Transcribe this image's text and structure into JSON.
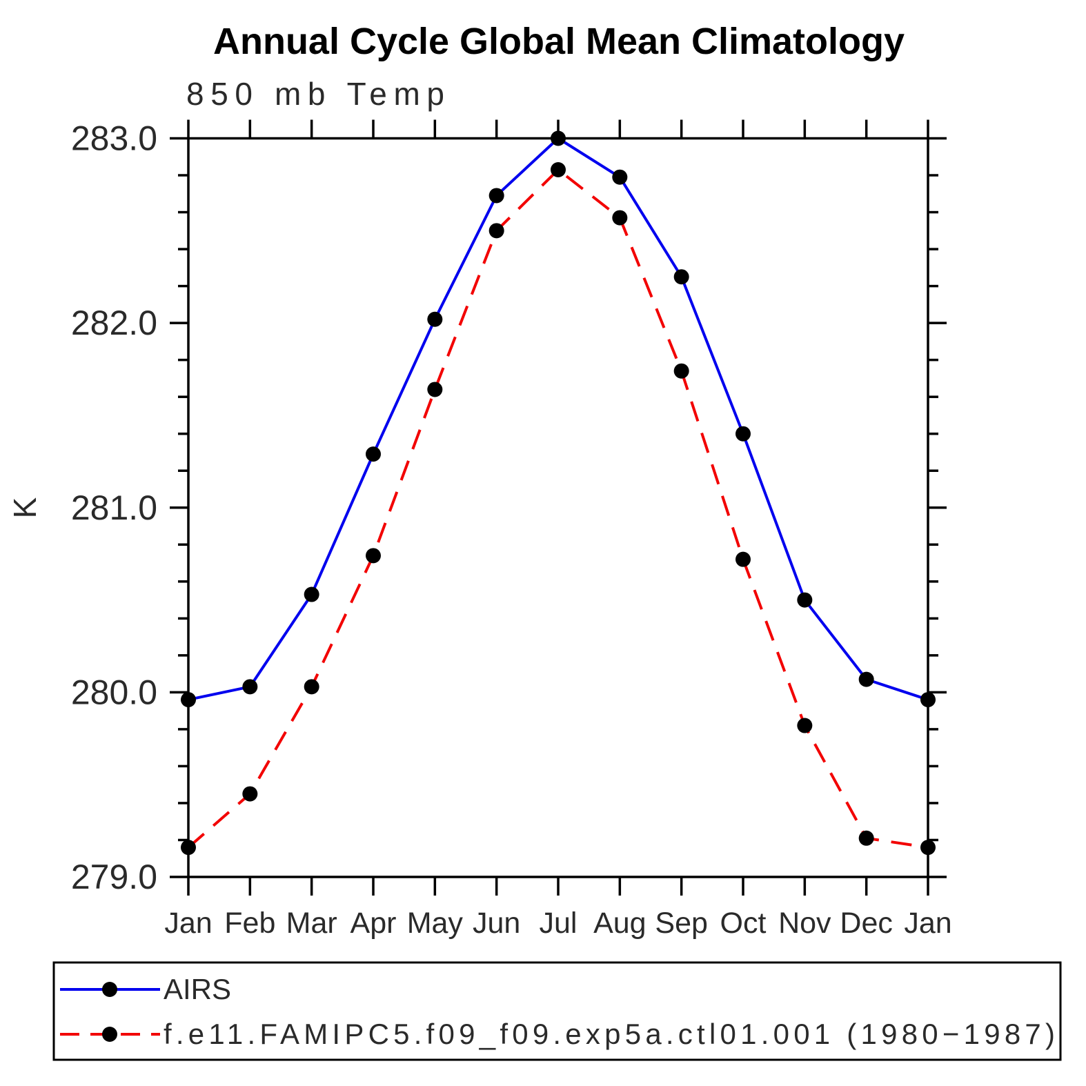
{
  "header": {
    "title": "Annual Cycle Global Mean Climatology",
    "subtitle": "850 mb Temp"
  },
  "colors": {
    "airs_line": "#0000ee",
    "model_line": "#f20000",
    "marker": "#000000",
    "axis": "#000000"
  },
  "legend": {
    "items": [
      {
        "label": "AIRS",
        "style": "solid",
        "color": "#0000ee"
      },
      {
        "label": "f.e11.FAMIPC5.f09_f09.exp5a.ctl01.001 (1980−1987)",
        "style": "dashed",
        "color": "#f20000"
      }
    ]
  },
  "chart_data": {
    "type": "line",
    "title": "Annual Cycle Global Mean Climatology",
    "subtitle": "850 mb Temp",
    "xlabel": "",
    "ylabel": "K",
    "categories": [
      "Jan",
      "Feb",
      "Mar",
      "Apr",
      "May",
      "Jun",
      "Jul",
      "Aug",
      "Sep",
      "Oct",
      "Nov",
      "Dec",
      "Jan"
    ],
    "series": [
      {
        "name": "AIRS",
        "style": "solid",
        "color": "#0000ee",
        "marker": "circle",
        "marker_color": "#000000",
        "values": [
          279.96,
          280.03,
          280.53,
          281.29,
          282.02,
          282.69,
          283.0,
          282.79,
          282.25,
          281.4,
          280.5,
          280.07,
          279.96
        ]
      },
      {
        "name": "f.e11.FAMIPC5.f09_f09.exp5a.ctl01.001 (1980−1987)",
        "style": "dashed",
        "color": "#f20000",
        "marker": "circle",
        "marker_color": "#000000",
        "values": [
          279.16,
          279.45,
          280.03,
          280.74,
          281.64,
          282.5,
          282.83,
          282.57,
          281.74,
          280.72,
          279.82,
          279.21,
          279.16
        ]
      }
    ],
    "ylim": [
      279.0,
      283.0
    ],
    "yticks": [
      279.0,
      280.0,
      281.0,
      282.0,
      283.0
    ],
    "ytick_labels": [
      "279.0",
      "280.0",
      "281.0",
      "282.0",
      "283.0"
    ],
    "y_minor_step": 0.2,
    "grid": false,
    "legend_position": "bottom"
  }
}
